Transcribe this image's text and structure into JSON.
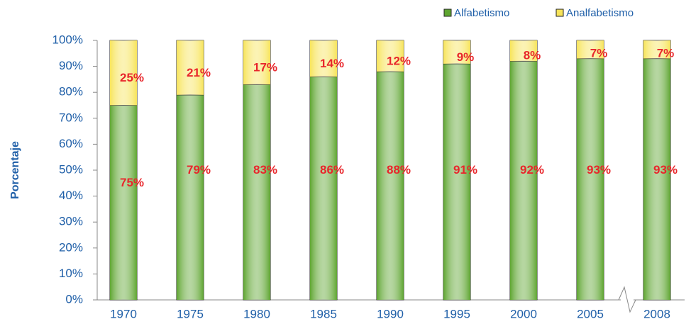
{
  "chart_data": {
    "type": "stacked_bar",
    "categories": [
      "1970",
      "1975",
      "1980",
      "1985",
      "1990",
      "1995",
      "2000",
      "2005",
      "2008"
    ],
    "series": [
      {
        "name": "Alfabetismo",
        "color": "#5ea530",
        "values": [
          75,
          79,
          83,
          86,
          88,
          91,
          92,
          93,
          93
        ],
        "value_labels": [
          "75%",
          "79%",
          "83%",
          "86%",
          "88%",
          "91%",
          "92%",
          "93%",
          "93%"
        ]
      },
      {
        "name": "Analfabetismo",
        "color": "#f7e45a",
        "values": [
          25,
          21,
          17,
          14,
          12,
          9,
          8,
          7,
          7
        ],
        "value_labels": [
          "25%",
          "21%",
          "17%",
          "14%",
          "12%",
          "9%",
          "8%",
          "7%",
          "7%"
        ]
      }
    ],
    "y_label": "Porcentaje",
    "ylim": [
      0,
      100
    ],
    "yticks": [
      {
        "value": 0,
        "label": "0%"
      },
      {
        "value": 10,
        "label": "10%"
      },
      {
        "value": 20,
        "label": "20%"
      },
      {
        "value": 30,
        "label": "30%"
      },
      {
        "value": 40,
        "label": "40%"
      },
      {
        "value": 50,
        "label": "50%"
      },
      {
        "value": 60,
        "label": "60%"
      },
      {
        "value": 70,
        "label": "70%"
      },
      {
        "value": 80,
        "label": "80%"
      },
      {
        "value": 90,
        "label": "90%"
      },
      {
        "value": 100,
        "label": "100%"
      }
    ],
    "legend": "top-right"
  }
}
